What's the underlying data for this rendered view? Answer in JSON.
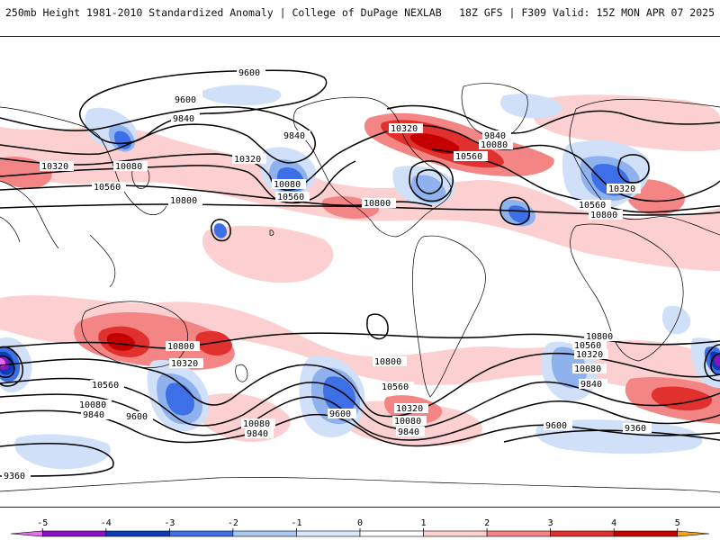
{
  "header": {
    "title_left": "250mb Height 1981-2010 Standardized Anomaly | College of DuPage NEXLAB",
    "title_right": "18Z GFS | F309 Valid: 15Z MON APR 07 2025"
  },
  "contour_labels": {
    "c9600": "9600",
    "c9840": "9840",
    "c10080": "10080",
    "c10320": "10320",
    "c10560": "10560",
    "c10800": "10800",
    "c9360": "9360"
  },
  "colorbar": {
    "ticks": [
      "-5",
      "-4",
      "-3",
      "-2",
      "-1",
      "0",
      "1",
      "2",
      "3",
      "4",
      "5"
    ],
    "colors": [
      "#e36cf0",
      "#8a12c4",
      "#0b3bb5",
      "#3d6fe6",
      "#a9c8f2",
      "#dbe8fa",
      "#ffffff",
      "#fcd0d0",
      "#f48585",
      "#e0312f",
      "#c40000",
      "#f2a30f"
    ],
    "bins": [
      {
        "from": -5.5,
        "to": -5,
        "color": "#e36cf0"
      },
      {
        "from": -5,
        "to": -4,
        "color": "#8a12c4"
      },
      {
        "from": -4,
        "to": -3,
        "color": "#0b3bb5"
      },
      {
        "from": -3,
        "to": -2,
        "color": "#3d6fe6"
      },
      {
        "from": -2,
        "to": -1,
        "color": "#a9c8f2"
      },
      {
        "from": -1,
        "to": 0,
        "color": "#dbe8fa"
      },
      {
        "from": 0,
        "to": 1,
        "color": "#ffffff"
      },
      {
        "from": 1,
        "to": 2,
        "color": "#fcd0d0"
      },
      {
        "from": 2,
        "to": 3,
        "color": "#f48585"
      },
      {
        "from": 3,
        "to": 4,
        "color": "#e0312f"
      },
      {
        "from": 4,
        "to": 5,
        "color": "#c40000"
      },
      {
        "from": 5,
        "to": 5.5,
        "color": "#f2a30f"
      }
    ]
  },
  "colors": {
    "positive_light": "#fcd0d0",
    "positive_mid": "#f48585",
    "positive_strong": "#e0312f",
    "positive_max": "#c40000",
    "negative_light": "#cfe0f8",
    "negative_mid": "#8fb2ee",
    "negative_strong": "#3d6fe6",
    "negative_max": "#0b3bb5",
    "contour": "#000000",
    "coast": "#000000"
  }
}
